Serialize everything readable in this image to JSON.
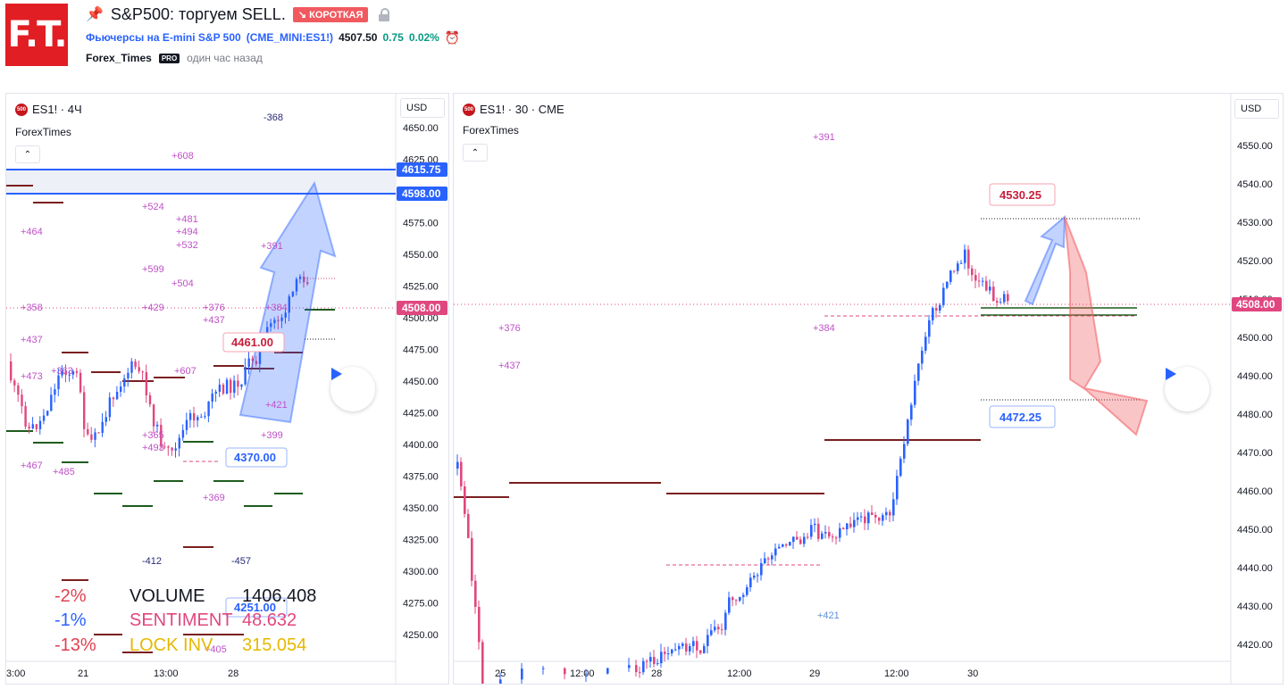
{
  "header": {
    "logo_text": "F.T.",
    "pin_icon": "pushpin",
    "title": "S&P500: торгуем SELL.",
    "badge": "↘ КОРОТКАЯ",
    "lock_icon": "lock",
    "symbol_name": "Фьючерсы на E-mini S&P 500",
    "symbol_code": "(CME_MINI:ES1!)",
    "price": "4507.50",
    "change": "0.75",
    "change_pct": "0.02%",
    "alarm_icon": "alarm-clock",
    "author": "Forex_Times",
    "author_badge": "PRO",
    "time_ago": "один час назад"
  },
  "colors": {
    "brand": "#e01e24",
    "up": "#2962ff",
    "down": "#e0477f",
    "sell": "#f05a5f",
    "positive": "#089981"
  },
  "left_chart": {
    "symbol_icon_text": "500",
    "label": "ES1! · 4Ч",
    "watermark": "ForexTimes",
    "currency": "USD",
    "y_ticks": [
      "4650.00",
      "4625.00",
      "4600.00",
      "4575.00",
      "4550.00",
      "4525.00",
      "4500.00",
      "4475.00",
      "4450.00",
      "4425.00",
      "4400.00",
      "4375.00",
      "4350.00",
      "4325.00",
      "4300.00",
      "4275.00",
      "4250.00"
    ],
    "x_ticks": [
      "3:00",
      "21",
      "13:00",
      "28"
    ],
    "price_badges": [
      "4615.75",
      "4598.00",
      "4508.00"
    ],
    "annotations": [
      "4461.00",
      "4370.00",
      "4251.00"
    ],
    "stats": [
      {
        "pct": "-2%",
        "name": "VOLUME",
        "value": "1406.408"
      },
      {
        "pct": "-1%",
        "name": "SENTIMENT",
        "value": "48.632"
      },
      {
        "pct": "-13%",
        "name": "LOCK INV",
        "value": "315.054"
      }
    ],
    "level_labels": [
      "-368",
      "+608",
      "+524",
      "+481",
      "+494",
      "+532",
      "+464",
      "+599",
      "+504",
      "+391",
      "+358",
      "+429",
      "+376",
      "+437",
      "+384",
      "+437",
      "+473",
      "+363",
      "+607",
      "+421",
      "+399",
      "+467",
      "+485",
      "+369",
      "-412",
      "-457",
      "+405",
      "+365",
      "+493"
    ]
  },
  "right_chart": {
    "symbol_icon_text": "500",
    "label": "ES1! · 30 · CME",
    "watermark": "ForexTimes",
    "currency": "USD",
    "y_ticks": [
      "4550.00",
      "4540.00",
      "4530.00",
      "4520.00",
      "4510.00",
      "4500.00",
      "4490.00",
      "4480.00",
      "4470.00",
      "4460.00",
      "4450.00",
      "4440.00",
      "4430.00",
      "4420.00"
    ],
    "x_ticks": [
      "25",
      "12:00",
      "28",
      "12:00",
      "29",
      "12:00",
      "30"
    ],
    "price_badge": "4508.00",
    "annotations": [
      "4530.25",
      "4472.25"
    ],
    "level_labels": [
      "+391",
      "+376",
      "+437",
      "+384",
      "+421"
    ]
  }
}
